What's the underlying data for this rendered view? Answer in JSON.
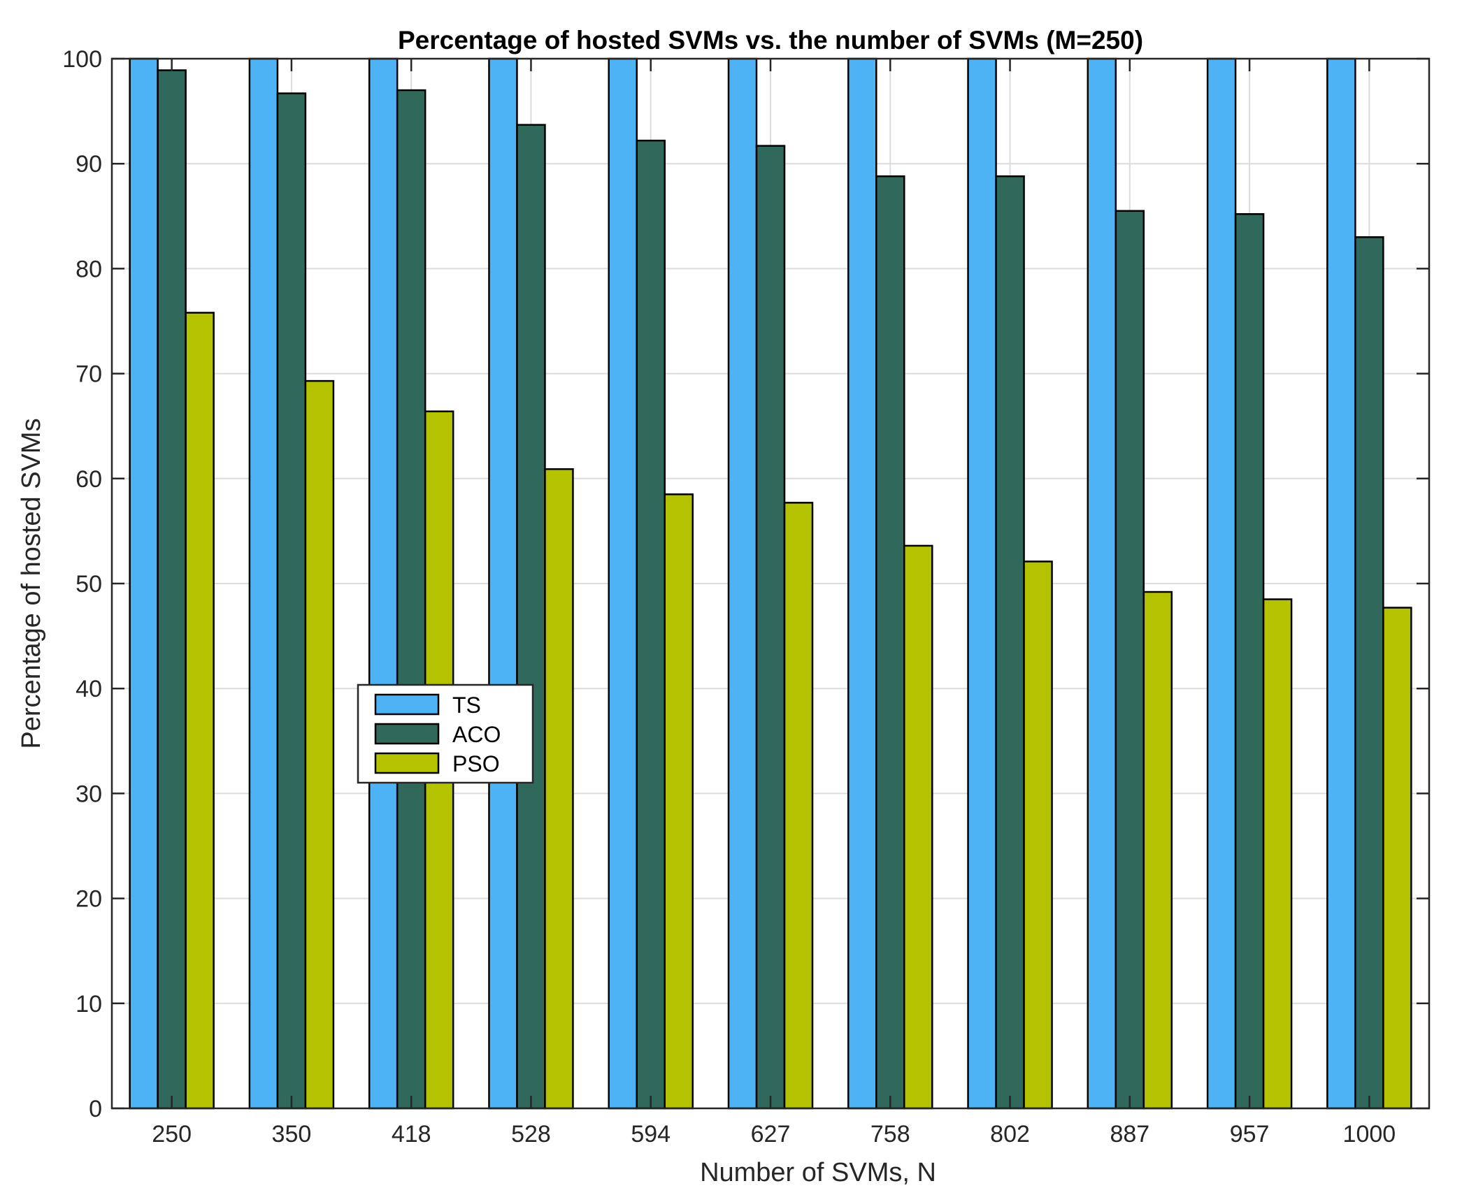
{
  "chart_data": {
    "type": "bar",
    "title": "Percentage of hosted SVMs vs. the number of SVMs (M=250)",
    "xlabel": "Number of SVMs, N",
    "ylabel": "Percentage of hosted SVMs",
    "ylim": [
      0,
      100
    ],
    "yticks": [
      "0",
      "10",
      "20",
      "30",
      "40",
      "50",
      "60",
      "70",
      "80",
      "90",
      "100"
    ],
    "grid": true,
    "legend_position": "center-left",
    "categories": [
      "250",
      "350",
      "418",
      "528",
      "594",
      "627",
      "758",
      "802",
      "887",
      "957",
      "1000"
    ],
    "series": [
      {
        "name": "TS",
        "color": "#4db3f5",
        "values": [
          100,
          100,
          100,
          100,
          100,
          100,
          100,
          100,
          100,
          100,
          100
        ]
      },
      {
        "name": "ACO",
        "color": "#30685c",
        "values": [
          98.9,
          96.7,
          97.0,
          93.7,
          92.2,
          91.7,
          88.8,
          88.8,
          85.5,
          85.2,
          83.0
        ]
      },
      {
        "name": "PSO",
        "color": "#b5c200",
        "values": [
          75.8,
          69.3,
          66.4,
          60.9,
          58.5,
          57.7,
          53.6,
          52.1,
          49.2,
          48.5,
          47.7
        ]
      }
    ]
  }
}
